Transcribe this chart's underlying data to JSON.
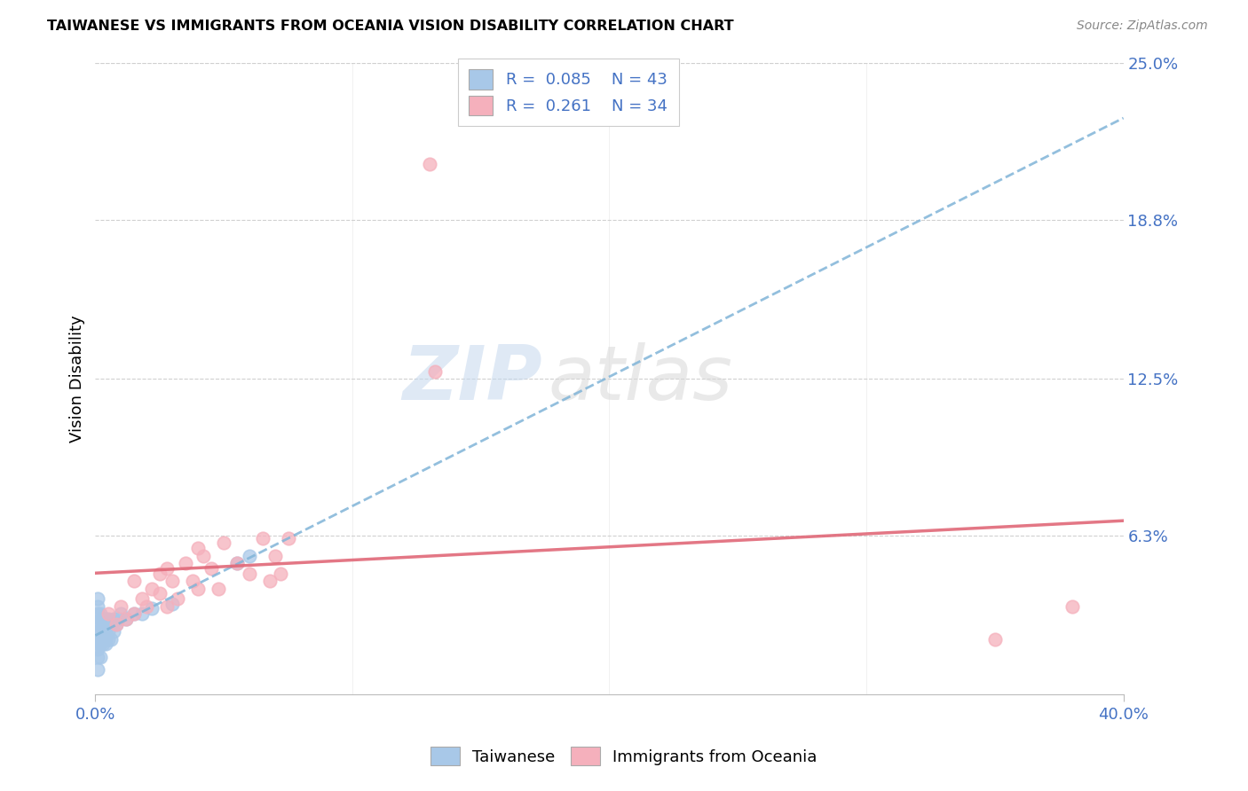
{
  "title": "TAIWANESE VS IMMIGRANTS FROM OCEANIA VISION DISABILITY CORRELATION CHART",
  "source": "Source: ZipAtlas.com",
  "ylabel": "Vision Disability",
  "xlim": [
    0.0,
    0.4
  ],
  "ylim": [
    0.0,
    0.25
  ],
  "ytick_values_right": [
    0.25,
    0.188,
    0.125,
    0.063
  ],
  "ytick_labels_right": [
    "25.0%",
    "18.8%",
    "12.5%",
    "6.3%"
  ],
  "xtick_positions": [
    0.0,
    0.4
  ],
  "xtick_labels": [
    "0.0%",
    "40.0%"
  ],
  "background_color": "#ffffff",
  "grid_color": "#d0d0d0",
  "taiwanese_color": "#a8c8e8",
  "oceania_color": "#f5b0bc",
  "taiwanese_line_color": "#80b4d8",
  "oceania_line_color": "#e06878",
  "legend_taiwanese_label": "Taiwanese",
  "legend_oceania_label": "Immigrants from Oceania",
  "R_taiwanese": "0.085",
  "N_taiwanese": 43,
  "R_oceania": "0.261",
  "N_oceania": 34,
  "watermark_zip": "ZIP",
  "watermark_atlas": "atlas",
  "tw_x": [
    0.001,
    0.001,
    0.001,
    0.001,
    0.001,
    0.001,
    0.001,
    0.001,
    0.001,
    0.001,
    0.002,
    0.002,
    0.002,
    0.002,
    0.002,
    0.002,
    0.002,
    0.003,
    0.003,
    0.003,
    0.003,
    0.003,
    0.004,
    0.004,
    0.004,
    0.004,
    0.005,
    0.005,
    0.005,
    0.006,
    0.006,
    0.007,
    0.007,
    0.008,
    0.009,
    0.01,
    0.012,
    0.015,
    0.018,
    0.022,
    0.03,
    0.055,
    0.06
  ],
  "tw_y": [
    0.01,
    0.015,
    0.018,
    0.02,
    0.022,
    0.025,
    0.028,
    0.032,
    0.035,
    0.038,
    0.015,
    0.02,
    0.022,
    0.025,
    0.028,
    0.03,
    0.032,
    0.02,
    0.022,
    0.025,
    0.028,
    0.03,
    0.02,
    0.022,
    0.025,
    0.03,
    0.022,
    0.025,
    0.03,
    0.022,
    0.028,
    0.025,
    0.03,
    0.028,
    0.03,
    0.032,
    0.03,
    0.032,
    0.032,
    0.034,
    0.036,
    0.052,
    0.055
  ],
  "oc_x": [
    0.005,
    0.008,
    0.01,
    0.012,
    0.015,
    0.015,
    0.018,
    0.02,
    0.022,
    0.025,
    0.025,
    0.028,
    0.028,
    0.03,
    0.032,
    0.035,
    0.038,
    0.04,
    0.04,
    0.042,
    0.045,
    0.048,
    0.05,
    0.055,
    0.06,
    0.065,
    0.068,
    0.07,
    0.072,
    0.075,
    0.13,
    0.132,
    0.35,
    0.38
  ],
  "oc_y": [
    0.032,
    0.028,
    0.035,
    0.03,
    0.045,
    0.032,
    0.038,
    0.035,
    0.042,
    0.04,
    0.048,
    0.035,
    0.05,
    0.045,
    0.038,
    0.052,
    0.045,
    0.058,
    0.042,
    0.055,
    0.05,
    0.042,
    0.06,
    0.052,
    0.048,
    0.062,
    0.045,
    0.055,
    0.048,
    0.062,
    0.21,
    0.128,
    0.022,
    0.035
  ]
}
